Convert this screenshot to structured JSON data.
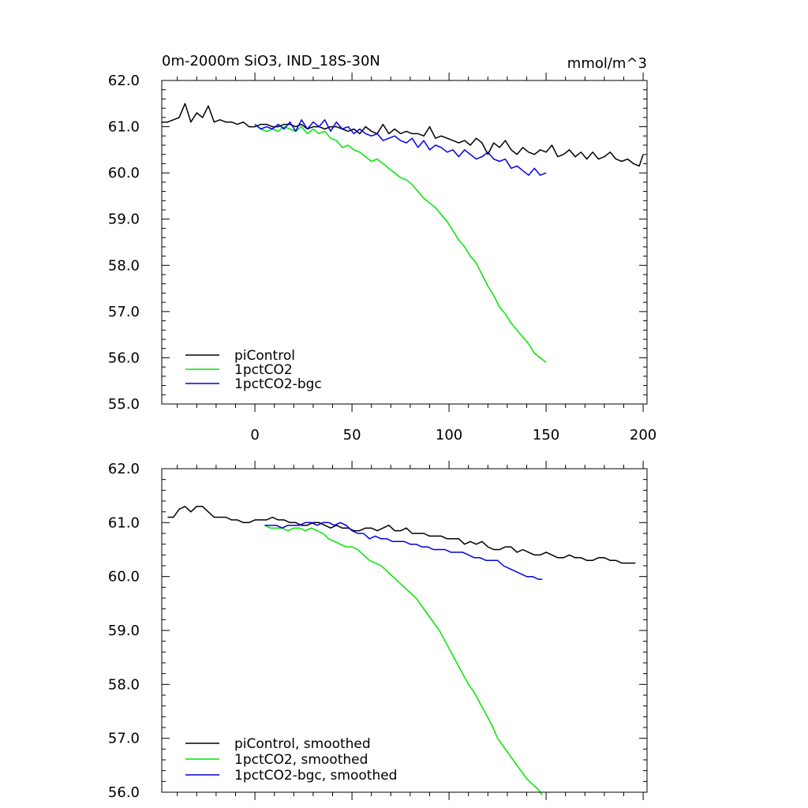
{
  "chart_data": [
    {
      "type": "line",
      "title": "0m-2000m SiO3, IND_18S-30N",
      "units_label": "mmol/m^3",
      "xlim": [
        -48,
        202
      ],
      "ylim": [
        55.0,
        62.0
      ],
      "xticks": [
        0,
        50,
        100,
        150,
        200
      ],
      "yticks": [
        55.0,
        56.0,
        57.0,
        58.0,
        59.0,
        60.0,
        61.0,
        62.0
      ],
      "yticklabels": [
        "55.0",
        "56.0",
        "57.0",
        "58.0",
        "59.0",
        "60.0",
        "61.0",
        "62.0"
      ],
      "legend_position": "bottom-left",
      "series": [
        {
          "name": "piControl",
          "color": "#000000",
          "x": [
            -48,
            -45,
            -42,
            -39,
            -36,
            -33,
            -30,
            -27,
            -24,
            -21,
            -18,
            -15,
            -12,
            -9,
            -6,
            -3,
            0,
            3,
            6,
            9,
            12,
            15,
            18,
            21,
            24,
            27,
            30,
            33,
            36,
            39,
            42,
            45,
            48,
            51,
            54,
            57,
            60,
            63,
            66,
            69,
            72,
            75,
            78,
            81,
            84,
            87,
            90,
            93,
            96,
            99,
            102,
            105,
            108,
            111,
            114,
            117,
            120,
            123,
            126,
            129,
            132,
            135,
            138,
            141,
            144,
            147,
            150,
            153,
            156,
            159,
            162,
            165,
            168,
            171,
            174,
            177,
            180,
            183,
            186,
            189,
            192,
            195,
            198,
            200
          ],
          "values": [
            61.1,
            61.1,
            61.15,
            61.2,
            61.5,
            61.1,
            61.3,
            61.2,
            61.45,
            61.1,
            61.15,
            61.1,
            61.1,
            61.05,
            61.1,
            61.0,
            61.0,
            61.05,
            61.05,
            61.0,
            61.0,
            61.05,
            61.05,
            61.0,
            61.05,
            60.95,
            61.0,
            61.0,
            60.95,
            61.0,
            61.0,
            60.95,
            60.9,
            60.95,
            60.85,
            61.0,
            60.9,
            60.85,
            61.05,
            60.85,
            60.95,
            60.85,
            60.9,
            60.85,
            60.85,
            60.8,
            61.0,
            60.75,
            60.8,
            60.75,
            60.7,
            60.65,
            60.7,
            60.6,
            60.75,
            60.65,
            60.4,
            60.65,
            60.55,
            60.7,
            60.5,
            60.4,
            60.55,
            60.45,
            60.4,
            60.5,
            60.45,
            60.6,
            60.35,
            60.4,
            60.5,
            60.35,
            60.45,
            60.3,
            60.45,
            60.3,
            60.35,
            60.45,
            60.3,
            60.25,
            60.3,
            60.2,
            60.15,
            60.4
          ]
        },
        {
          "name": "1pctCO2",
          "color": "#00e600",
          "x": [
            0,
            3,
            6,
            9,
            12,
            15,
            18,
            21,
            24,
            27,
            30,
            33,
            36,
            39,
            42,
            45,
            48,
            51,
            54,
            57,
            60,
            63,
            66,
            69,
            72,
            75,
            78,
            81,
            84,
            87,
            90,
            93,
            96,
            99,
            102,
            105,
            108,
            111,
            114,
            117,
            120,
            123,
            126,
            129,
            132,
            135,
            138,
            141,
            144,
            147,
            150
          ],
          "values": [
            61.05,
            60.95,
            60.9,
            60.95,
            60.9,
            61.0,
            60.95,
            60.9,
            61.0,
            60.85,
            60.95,
            60.85,
            60.9,
            60.75,
            60.7,
            60.55,
            60.6,
            60.5,
            60.45,
            60.35,
            60.25,
            60.3,
            60.2,
            60.1,
            60.0,
            59.9,
            59.85,
            59.75,
            59.6,
            59.45,
            59.35,
            59.25,
            59.1,
            58.95,
            58.75,
            58.55,
            58.4,
            58.2,
            58.05,
            57.8,
            57.55,
            57.35,
            57.1,
            56.95,
            56.75,
            56.6,
            56.45,
            56.3,
            56.1,
            56.0,
            55.9
          ]
        },
        {
          "name": "1pctCO2-bgc",
          "color": "#0000e6",
          "x": [
            0,
            3,
            6,
            9,
            12,
            15,
            18,
            21,
            24,
            27,
            30,
            33,
            36,
            39,
            42,
            45,
            48,
            51,
            54,
            57,
            60,
            63,
            66,
            69,
            72,
            75,
            78,
            81,
            84,
            87,
            90,
            93,
            96,
            99,
            102,
            105,
            108,
            111,
            114,
            117,
            120,
            123,
            126,
            129,
            132,
            135,
            138,
            141,
            144,
            147,
            150
          ],
          "values": [
            61.05,
            60.95,
            61.0,
            60.95,
            61.05,
            60.95,
            61.1,
            60.9,
            61.15,
            60.95,
            61.1,
            61.0,
            61.15,
            60.9,
            61.1,
            60.95,
            61.0,
            60.85,
            60.95,
            60.85,
            60.8,
            60.85,
            60.7,
            60.75,
            60.8,
            60.7,
            60.65,
            60.75,
            60.55,
            60.7,
            60.5,
            60.6,
            60.55,
            60.45,
            60.5,
            60.35,
            60.5,
            60.4,
            60.3,
            60.35,
            60.45,
            60.3,
            60.25,
            60.3,
            60.1,
            60.15,
            60.05,
            59.95,
            60.1,
            59.95,
            60.0
          ]
        }
      ]
    },
    {
      "type": "line",
      "title": "",
      "xlim": [
        -48,
        202
      ],
      "ylim": [
        56.0,
        62.0
      ],
      "xticks": [
        0,
        50,
        100,
        150,
        200
      ],
      "yticks": [
        56.0,
        57.0,
        58.0,
        59.0,
        60.0,
        61.0,
        62.0
      ],
      "yticklabels": [
        "56.0",
        "57.0",
        "58.0",
        "59.0",
        "60.0",
        "61.0",
        "62.0"
      ],
      "legend_position": "bottom-left",
      "series": [
        {
          "name": "piControl, smoothed",
          "color": "#000000",
          "x": [
            -45,
            -42,
            -39,
            -36,
            -33,
            -30,
            -27,
            -24,
            -21,
            -18,
            -15,
            -12,
            -9,
            -6,
            -3,
            0,
            3,
            6,
            9,
            12,
            15,
            18,
            21,
            24,
            27,
            30,
            33,
            36,
            39,
            42,
            45,
            48,
            51,
            54,
            57,
            60,
            63,
            66,
            69,
            72,
            75,
            78,
            81,
            84,
            87,
            90,
            93,
            96,
            99,
            102,
            105,
            108,
            111,
            114,
            117,
            120,
            123,
            126,
            129,
            132,
            135,
            138,
            141,
            144,
            147,
            150,
            153,
            156,
            159,
            162,
            165,
            168,
            171,
            174,
            177,
            180,
            183,
            186,
            189,
            192,
            195,
            196
          ],
          "values": [
            61.1,
            61.1,
            61.25,
            61.3,
            61.2,
            61.3,
            61.3,
            61.2,
            61.1,
            61.1,
            61.1,
            61.05,
            61.05,
            61.0,
            61.0,
            61.05,
            61.05,
            61.05,
            61.1,
            61.05,
            61.05,
            61.0,
            61.0,
            60.95,
            60.95,
            61.0,
            61.0,
            60.95,
            60.9,
            60.95,
            60.9,
            60.9,
            60.85,
            60.85,
            60.9,
            60.9,
            60.85,
            60.9,
            60.95,
            60.85,
            60.85,
            60.9,
            60.8,
            60.8,
            60.8,
            60.75,
            60.75,
            60.75,
            60.7,
            60.7,
            60.7,
            60.6,
            60.65,
            60.6,
            60.65,
            60.55,
            60.5,
            60.5,
            60.55,
            60.55,
            60.45,
            60.5,
            60.45,
            60.4,
            60.4,
            60.45,
            60.4,
            60.35,
            60.35,
            60.4,
            60.35,
            60.35,
            60.3,
            60.3,
            60.35,
            60.35,
            60.3,
            60.3,
            60.25,
            60.25,
            60.25,
            60.25
          ]
        },
        {
          "name": "1pctCO2, smoothed",
          "color": "#00e600",
          "x": [
            5,
            8,
            11,
            14,
            17,
            20,
            23,
            26,
            29,
            32,
            35,
            38,
            41,
            44,
            47,
            50,
            53,
            56,
            59,
            62,
            65,
            68,
            71,
            74,
            77,
            80,
            83,
            86,
            89,
            92,
            95,
            98,
            101,
            104,
            107,
            110,
            113,
            116,
            119,
            122,
            125,
            128,
            131,
            134,
            137,
            140,
            143,
            146,
            148
          ],
          "values": [
            60.95,
            60.9,
            60.9,
            60.9,
            60.85,
            60.9,
            60.9,
            60.85,
            60.9,
            60.85,
            60.8,
            60.7,
            60.65,
            60.6,
            60.55,
            60.55,
            60.5,
            60.4,
            60.3,
            60.25,
            60.2,
            60.1,
            60.0,
            59.9,
            59.8,
            59.7,
            59.6,
            59.45,
            59.3,
            59.15,
            59.0,
            58.8,
            58.6,
            58.4,
            58.2,
            58.0,
            57.85,
            57.65,
            57.45,
            57.25,
            57.0,
            56.85,
            56.7,
            56.55,
            56.4,
            56.25,
            56.15,
            56.05,
            55.95
          ]
        },
        {
          "name": "1pctCO2-bgc, smoothed",
          "color": "#0000e6",
          "x": [
            5,
            8,
            11,
            14,
            17,
            20,
            23,
            26,
            29,
            32,
            35,
            38,
            41,
            44,
            47,
            50,
            53,
            56,
            59,
            62,
            65,
            68,
            71,
            74,
            77,
            80,
            83,
            86,
            89,
            92,
            95,
            98,
            101,
            104,
            107,
            110,
            113,
            116,
            119,
            122,
            125,
            128,
            131,
            134,
            137,
            140,
            143,
            146,
            148
          ],
          "values": [
            60.95,
            60.95,
            60.95,
            60.9,
            60.95,
            60.95,
            60.95,
            61.0,
            61.0,
            60.95,
            61.0,
            61.0,
            60.95,
            61.0,
            60.95,
            60.85,
            60.8,
            60.8,
            60.7,
            60.75,
            60.7,
            60.7,
            60.65,
            60.65,
            60.65,
            60.6,
            60.6,
            60.55,
            60.55,
            60.5,
            60.5,
            60.5,
            60.45,
            60.45,
            60.45,
            60.4,
            60.35,
            60.35,
            60.3,
            60.3,
            60.3,
            60.2,
            60.15,
            60.1,
            60.05,
            60.0,
            60.0,
            59.95,
            59.95
          ]
        }
      ]
    }
  ]
}
